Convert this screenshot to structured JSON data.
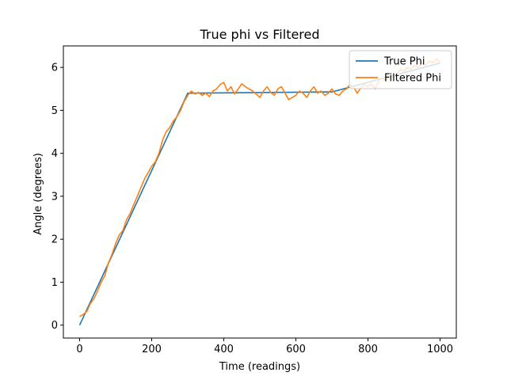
{
  "chart_data": {
    "type": "line",
    "title": "True phi vs Filtered",
    "xlabel": "Time (readings)",
    "ylabel": "Angle (degrees)",
    "xlim": [
      -45,
      1045
    ],
    "ylim": [
      -0.3,
      6.5
    ],
    "xticks": [
      0,
      200,
      400,
      600,
      800,
      1000
    ],
    "yticks": [
      0,
      1,
      2,
      3,
      4,
      5,
      6
    ],
    "grid": false,
    "legend_position": "top-right",
    "series": [
      {
        "name": "True Phi",
        "color": "#1f77b4",
        "x": [
          0,
          300,
          700,
          1000
        ],
        "y": [
          0,
          5.4,
          5.43,
          6.1
        ]
      },
      {
        "name": "Filtered Phi",
        "color": "#ff7f0e",
        "x": [
          0,
          10,
          20,
          30,
          40,
          50,
          60,
          70,
          80,
          90,
          100,
          110,
          120,
          130,
          140,
          150,
          160,
          170,
          180,
          190,
          200,
          210,
          220,
          230,
          240,
          250,
          260,
          270,
          280,
          290,
          300,
          310,
          320,
          330,
          340,
          350,
          360,
          370,
          380,
          390,
          400,
          410,
          420,
          430,
          440,
          450,
          460,
          470,
          480,
          490,
          500,
          510,
          520,
          530,
          540,
          550,
          560,
          570,
          580,
          590,
          600,
          610,
          620,
          630,
          640,
          650,
          660,
          670,
          680,
          690,
          700,
          710,
          720,
          730,
          740,
          750,
          760,
          770,
          780,
          790,
          800,
          810,
          820,
          830,
          840,
          850,
          860,
          870,
          880,
          890,
          900,
          910,
          920,
          930,
          940,
          950,
          960,
          970,
          980,
          990,
          1000
        ],
        "y": [
          0.2,
          0.25,
          0.32,
          0.5,
          0.62,
          0.8,
          1.0,
          1.15,
          1.45,
          1.65,
          1.9,
          2.1,
          2.2,
          2.45,
          2.6,
          2.8,
          3.0,
          3.2,
          3.4,
          3.55,
          3.7,
          3.8,
          4.0,
          4.3,
          4.5,
          4.6,
          4.75,
          4.85,
          5.0,
          5.2,
          5.35,
          5.45,
          5.38,
          5.42,
          5.35,
          5.4,
          5.32,
          5.45,
          5.5,
          5.6,
          5.65,
          5.45,
          5.55,
          5.38,
          5.5,
          5.62,
          5.55,
          5.5,
          5.45,
          5.38,
          5.3,
          5.45,
          5.55,
          5.42,
          5.35,
          5.5,
          5.55,
          5.4,
          5.25,
          5.3,
          5.35,
          5.45,
          5.4,
          5.3,
          5.45,
          5.55,
          5.4,
          5.45,
          5.35,
          5.4,
          5.5,
          5.38,
          5.35,
          5.45,
          5.5,
          5.6,
          5.55,
          5.4,
          5.52,
          5.6,
          5.55,
          5.62,
          5.5,
          5.7,
          5.75,
          5.68,
          5.8,
          5.78,
          5.85,
          5.95,
          5.9,
          6.0,
          5.95,
          6.05,
          6.0,
          6.1,
          6.05,
          6.15,
          6.1,
          6.2,
          6.12
        ]
      }
    ]
  }
}
